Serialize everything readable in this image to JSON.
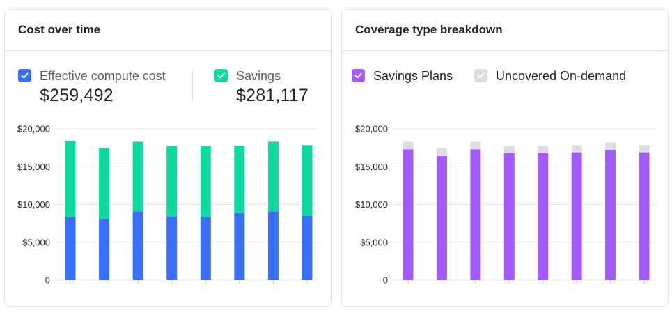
{
  "cost_card": {
    "title": "Cost over time",
    "legend": [
      {
        "label": "Effective compute cost",
        "value": "$259,492",
        "color": "#3a6ff7",
        "icon": "check-icon"
      },
      {
        "label": "Savings",
        "value": "$281,117",
        "color": "#0fd9a0",
        "icon": "check-icon"
      }
    ]
  },
  "coverage_card": {
    "title": "Coverage type breakdown",
    "legend": [
      {
        "label": "Savings Plans",
        "color": "#a35cfb",
        "icon": "check-icon"
      },
      {
        "label": "Uncovered On-demand",
        "color": "#dcdee3",
        "icon": "check-icon"
      }
    ]
  },
  "chart_data": [
    {
      "type": "bar",
      "stacked": true,
      "ytick_labels": [
        "$20,000",
        "$15,000",
        "$10,000",
        "$5,000",
        "0"
      ],
      "yticks": [
        20000,
        15000,
        10000,
        5000,
        0
      ],
      "ylim": [
        0,
        20000
      ],
      "grid": true,
      "series": [
        {
          "name": "Effective compute cost",
          "color": "#3a6ff7",
          "values": [
            8300,
            8100,
            9100,
            8450,
            8300,
            8850,
            9100,
            8500
          ]
        },
        {
          "name": "Savings",
          "color": "#0fd9a0",
          "values": [
            10100,
            9350,
            9200,
            9250,
            9450,
            8950,
            9200,
            9350
          ]
        }
      ]
    },
    {
      "type": "bar",
      "stacked": true,
      "ytick_labels": [
        "$20,000",
        "$15,000",
        "$10,000",
        "$5,000",
        "0"
      ],
      "yticks": [
        20000,
        15000,
        10000,
        5000,
        0
      ],
      "ylim": [
        0,
        20000
      ],
      "grid": true,
      "series": [
        {
          "name": "Savings Plans",
          "color": "#a35cfb",
          "values": [
            17300,
            16400,
            17300,
            16800,
            16800,
            16900,
            17200,
            16900
          ]
        },
        {
          "name": "Uncovered On-demand",
          "color": "#dcdee3",
          "values": [
            1000,
            1050,
            1000,
            950,
            950,
            950,
            1000,
            950
          ]
        }
      ]
    }
  ]
}
